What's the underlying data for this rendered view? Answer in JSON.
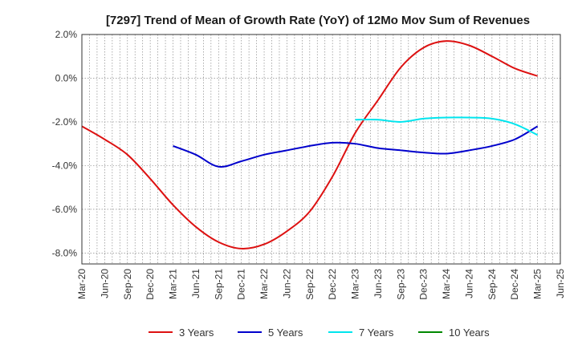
{
  "chart_data": {
    "type": "line",
    "title": "[7297]  Trend of Mean of Growth Rate (YoY) of 12Mo Mov Sum of Revenues",
    "xlabel": "",
    "ylabel": "",
    "ylim": [
      -8.5,
      2.0
    ],
    "yticks": [
      2.0,
      0.0,
      -2.0,
      -4.0,
      -6.0,
      -8.0
    ],
    "ytick_labels": [
      "2.0%",
      "0.0%",
      "-2.0%",
      "-4.0%",
      "-6.0%",
      "-8.0%"
    ],
    "x_categories": [
      "Mar-20",
      "Jun-20",
      "Sep-20",
      "Dec-20",
      "Mar-21",
      "Jun-21",
      "Sep-21",
      "Dec-21",
      "Mar-22",
      "Jun-22",
      "Sep-22",
      "Dec-22",
      "Mar-23",
      "Jun-23",
      "Sep-23",
      "Dec-23",
      "Mar-24",
      "Jun-24",
      "Sep-24",
      "Dec-24",
      "Mar-25",
      "Jun-25"
    ],
    "grid": true,
    "legend_position": "bottom",
    "series": [
      {
        "name": "3 Years",
        "color": "#dd1111",
        "values": [
          -2.2,
          -2.8,
          -3.5,
          -4.6,
          -5.8,
          -6.8,
          -7.5,
          -7.8,
          -7.6,
          -7.0,
          -6.1,
          -4.5,
          -2.5,
          -1.0,
          0.5,
          1.4,
          1.7,
          1.5,
          1.0,
          0.45,
          0.1,
          null
        ]
      },
      {
        "name": "5 Years",
        "color": "#0000cc",
        "values": [
          null,
          null,
          null,
          null,
          -3.1,
          -3.5,
          -4.05,
          -3.8,
          -3.5,
          -3.3,
          -3.1,
          -2.95,
          -3.0,
          -3.2,
          -3.3,
          -3.4,
          -3.45,
          -3.3,
          -3.1,
          -2.8,
          -2.2,
          null
        ]
      },
      {
        "name": "7 Years",
        "color": "#00e5ee",
        "values": [
          null,
          null,
          null,
          null,
          null,
          null,
          null,
          null,
          null,
          null,
          null,
          null,
          -1.9,
          -1.9,
          -2.0,
          -1.85,
          -1.8,
          -1.8,
          -1.85,
          -2.1,
          -2.6,
          null
        ]
      },
      {
        "name": "10 Years",
        "color": "#008800",
        "values": [
          null,
          null,
          null,
          null,
          null,
          null,
          null,
          null,
          null,
          null,
          null,
          null,
          null,
          null,
          null,
          null,
          null,
          null,
          null,
          null,
          null,
          null
        ]
      }
    ]
  }
}
